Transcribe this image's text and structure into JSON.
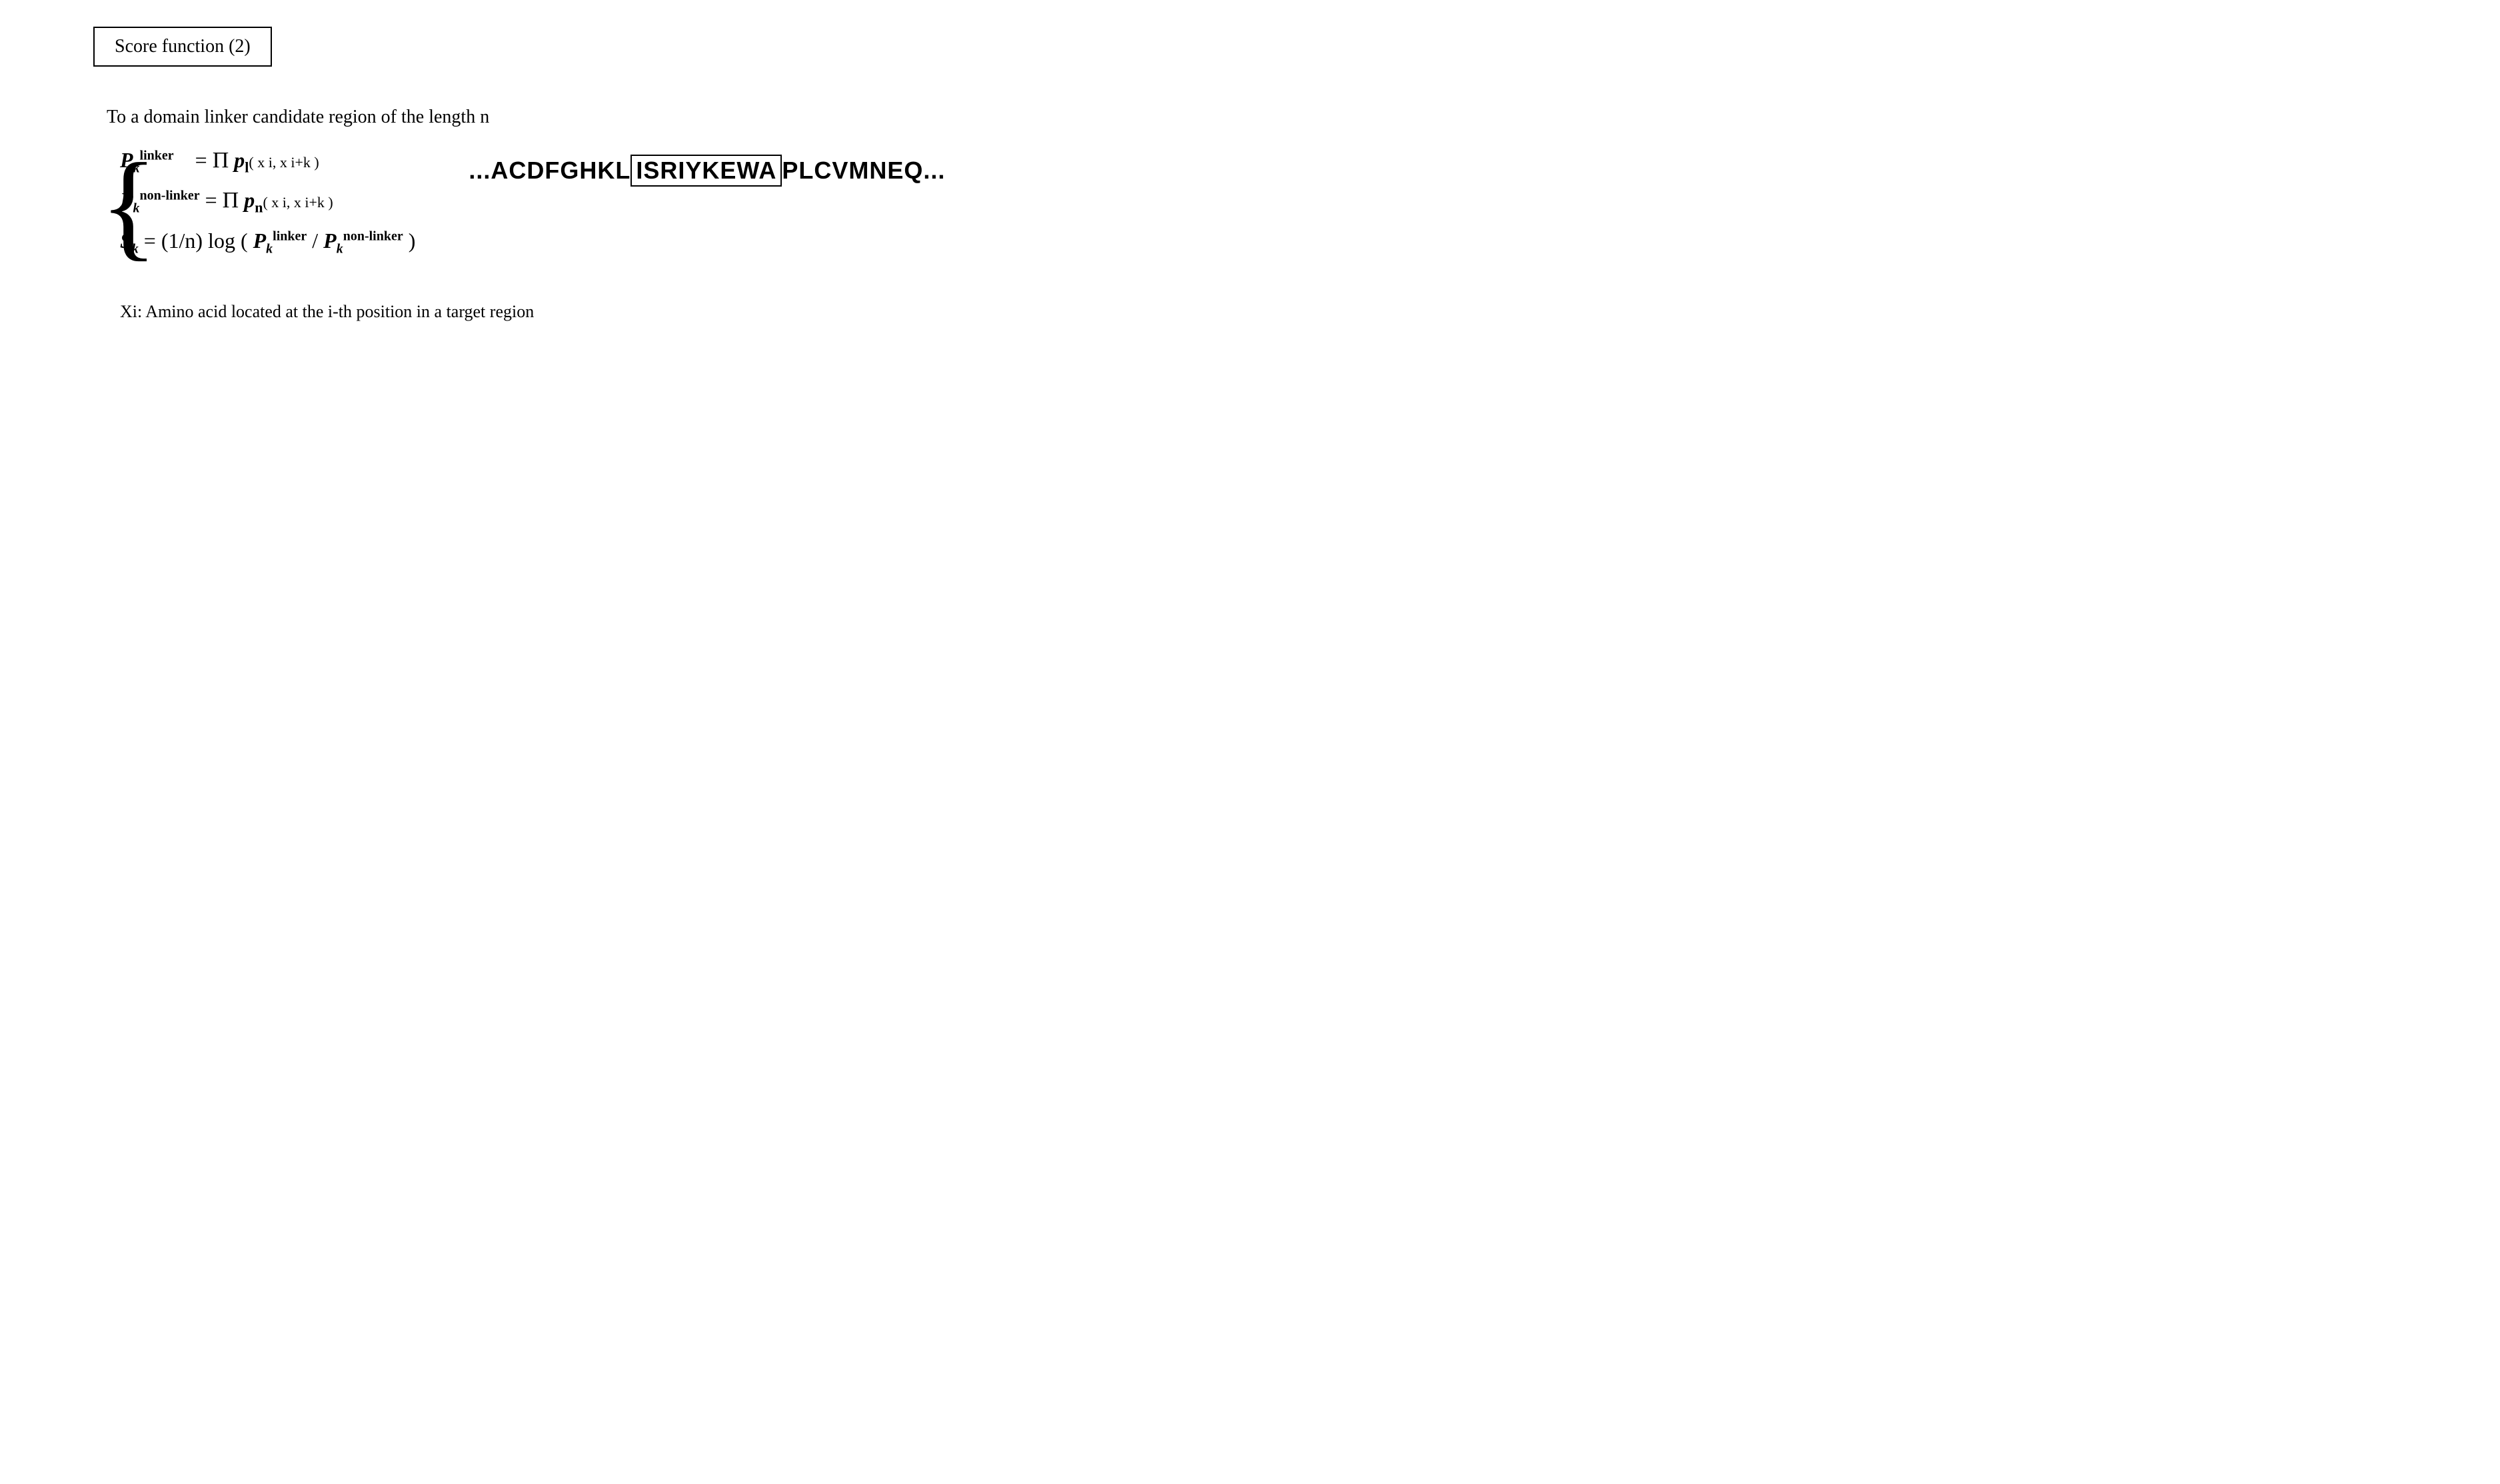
{
  "title": "Score function (2)",
  "intro": "To a domain linker candidate region of the length n",
  "equations": {
    "eq1_lhs_var": "P",
    "eq1_lhs_sub": "k",
    "eq1_lhs_sup": "linker",
    "eq1_rhs_prod": "Π",
    "eq1_rhs_var": "p",
    "eq1_rhs_sub": "l",
    "eq1_rhs_args": "( x i, x i+k )",
    "eq2_lhs_var": "P",
    "eq2_lhs_sub": "k",
    "eq2_lhs_sup": "non-linker",
    "eq2_rhs_prod": "Π",
    "eq2_rhs_var": "p",
    "eq2_rhs_sub": "n",
    "eq2_rhs_args": "( x i, x i+k )",
    "eq3_lhs_var": "S",
    "eq3_lhs_sub": "k",
    "eq3_rhs_prefix": " = (1/n) log ( ",
    "eq3_rhs_p1_var": "P",
    "eq3_rhs_p1_sub": "k",
    "eq3_rhs_p1_sup": "linker",
    "eq3_rhs_slash": " / ",
    "eq3_rhs_p2_var": "P",
    "eq3_rhs_p2_sub": "k",
    "eq3_rhs_p2_sup": "non-linker",
    "eq3_rhs_suffix": " )"
  },
  "sequence": {
    "prefix": "...ACDFGHKL",
    "boxed": "ISRIYKEWA",
    "suffix": "PLCVMNEQ..."
  },
  "footnote": "Xi: Amino acid located at the i-th position in a target region",
  "style": {
    "background_color": "#ffffff",
    "text_color": "#000000",
    "border_color": "#000000",
    "title_fontsize": 28,
    "body_fontsize": 28,
    "equation_fontsize": 32,
    "sequence_fontsize": 36,
    "sequence_font": "Arial",
    "body_font": "Times New Roman"
  }
}
